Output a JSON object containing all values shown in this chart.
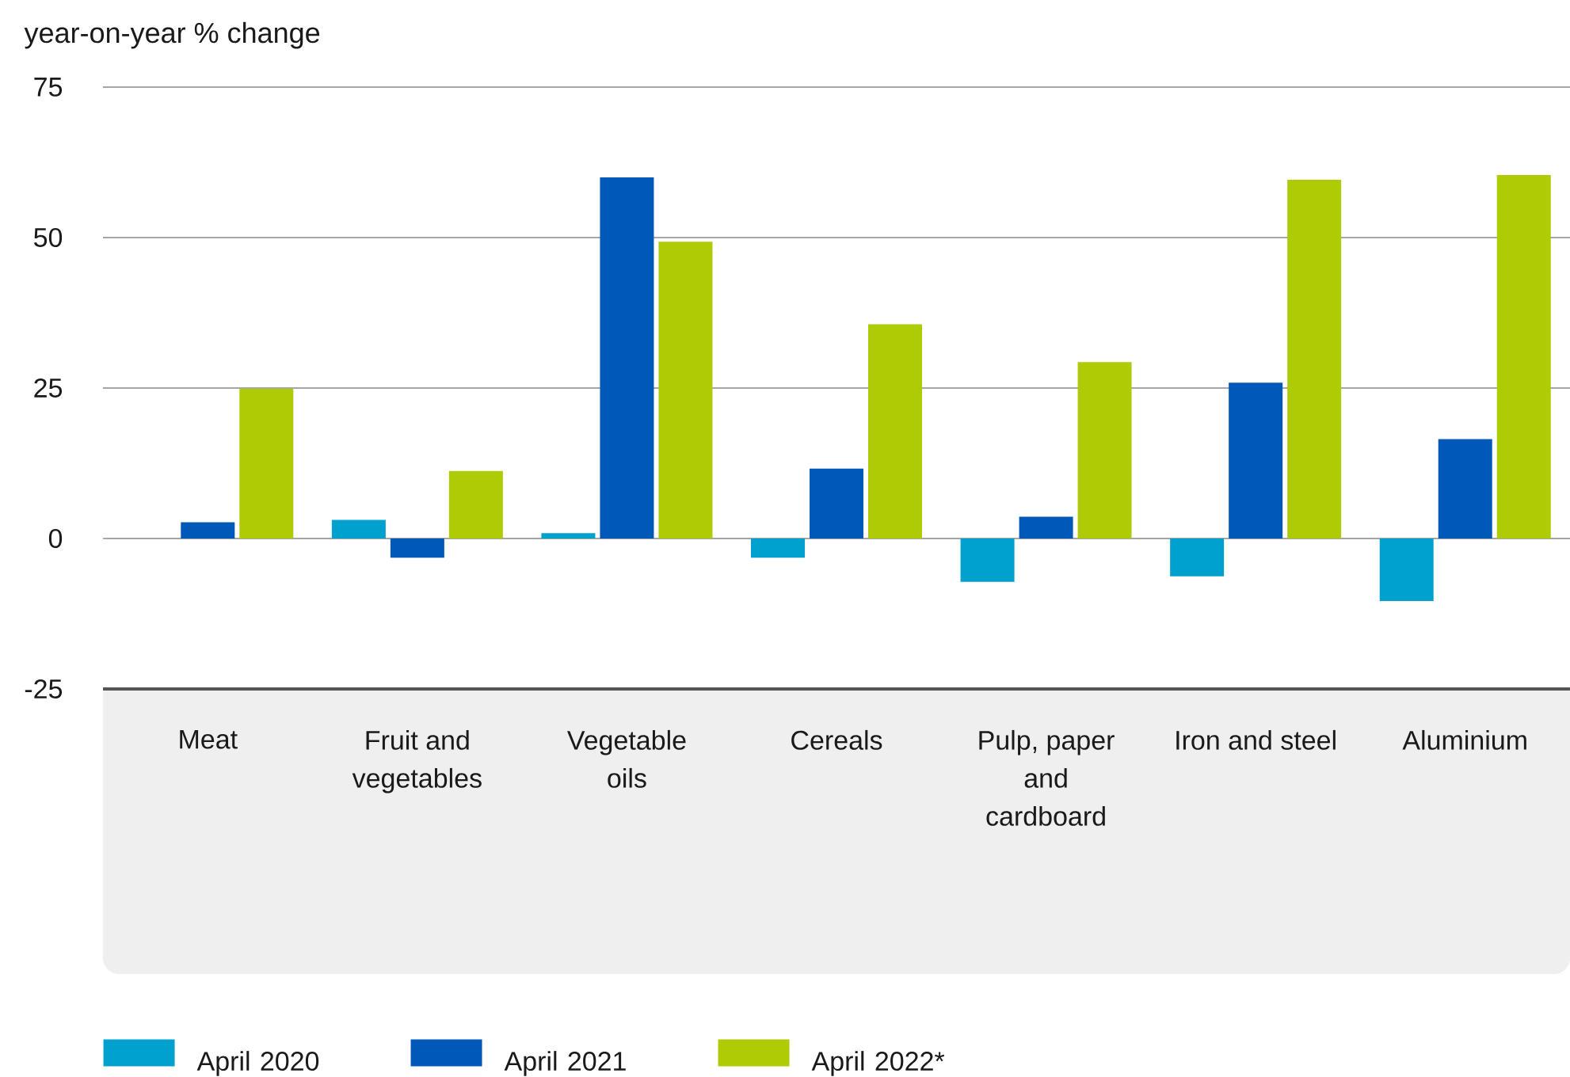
{
  "chart_data": {
    "type": "bar",
    "ylabel": "year-on-year % change",
    "categories": [
      "Meat",
      "Fruit and vegetables",
      "Vegetable oils",
      "Cereals",
      "Pulp, paper and cardboard",
      "Iron and steel",
      "Aluminium"
    ],
    "series": [
      {
        "name": "April 2020",
        "color": "#00a1cd",
        "values": [
          null,
          3.1,
          0.9,
          -3.2,
          -7.2,
          -6.3,
          -10.4
        ]
      },
      {
        "name": "April 2021",
        "color": "#0058b8",
        "values": [
          2.7,
          -3.2,
          60.0,
          11.6,
          3.6,
          25.9,
          16.5
        ]
      },
      {
        "name": "April 2022*",
        "color": "#afcb05",
        "values": [
          24.9,
          11.2,
          49.3,
          35.6,
          29.3,
          59.6,
          60.4
        ]
      }
    ],
    "ylim": [
      -25,
      75
    ],
    "yticks": [
      -25,
      0,
      25,
      50,
      75
    ],
    "grid": "y",
    "legend": "bottom"
  }
}
